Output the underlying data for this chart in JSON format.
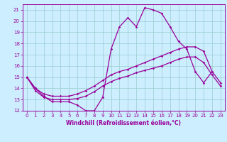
{
  "xlabel": "Windchill (Refroidissement éolien,°C)",
  "x": [
    0,
    1,
    2,
    3,
    4,
    5,
    6,
    7,
    8,
    9,
    10,
    11,
    12,
    13,
    14,
    15,
    16,
    17,
    18,
    19,
    20,
    21,
    22,
    23
  ],
  "line_peak": [
    15,
    14,
    13.3,
    12.8,
    12.8,
    12.8,
    12.5,
    12.0,
    12.0,
    13.2,
    17.5,
    19.5,
    20.3,
    19.5,
    21.2,
    21.0,
    20.7,
    19.5,
    18.2,
    17.5,
    15.5,
    14.5,
    15.5,
    null
  ],
  "line_high": [
    15,
    14.0,
    13.5,
    13.3,
    13.3,
    13.3,
    13.5,
    13.8,
    14.2,
    14.7,
    15.2,
    15.5,
    15.7,
    16.0,
    16.3,
    16.6,
    16.9,
    17.2,
    17.5,
    17.7,
    17.7,
    17.3,
    15.5,
    14.5
  ],
  "line_low": [
    15,
    13.8,
    13.2,
    13.0,
    13.0,
    13.0,
    13.1,
    13.3,
    13.7,
    14.2,
    14.6,
    14.9,
    15.1,
    15.4,
    15.6,
    15.8,
    16.0,
    16.3,
    16.6,
    16.8,
    16.8,
    16.3,
    15.2,
    14.2
  ],
  "bg_color": "#cceeff",
  "line_color": "#990099",
  "grid_color": "#99cccc",
  "xlim": [
    -0.5,
    23.5
  ],
  "ylim": [
    12,
    21.5
  ],
  "yticks": [
    12,
    13,
    14,
    15,
    16,
    17,
    18,
    19,
    20,
    21
  ],
  "xticks": [
    0,
    1,
    2,
    3,
    4,
    5,
    6,
    7,
    8,
    9,
    10,
    11,
    12,
    13,
    14,
    15,
    16,
    17,
    18,
    19,
    20,
    21,
    22,
    23
  ]
}
